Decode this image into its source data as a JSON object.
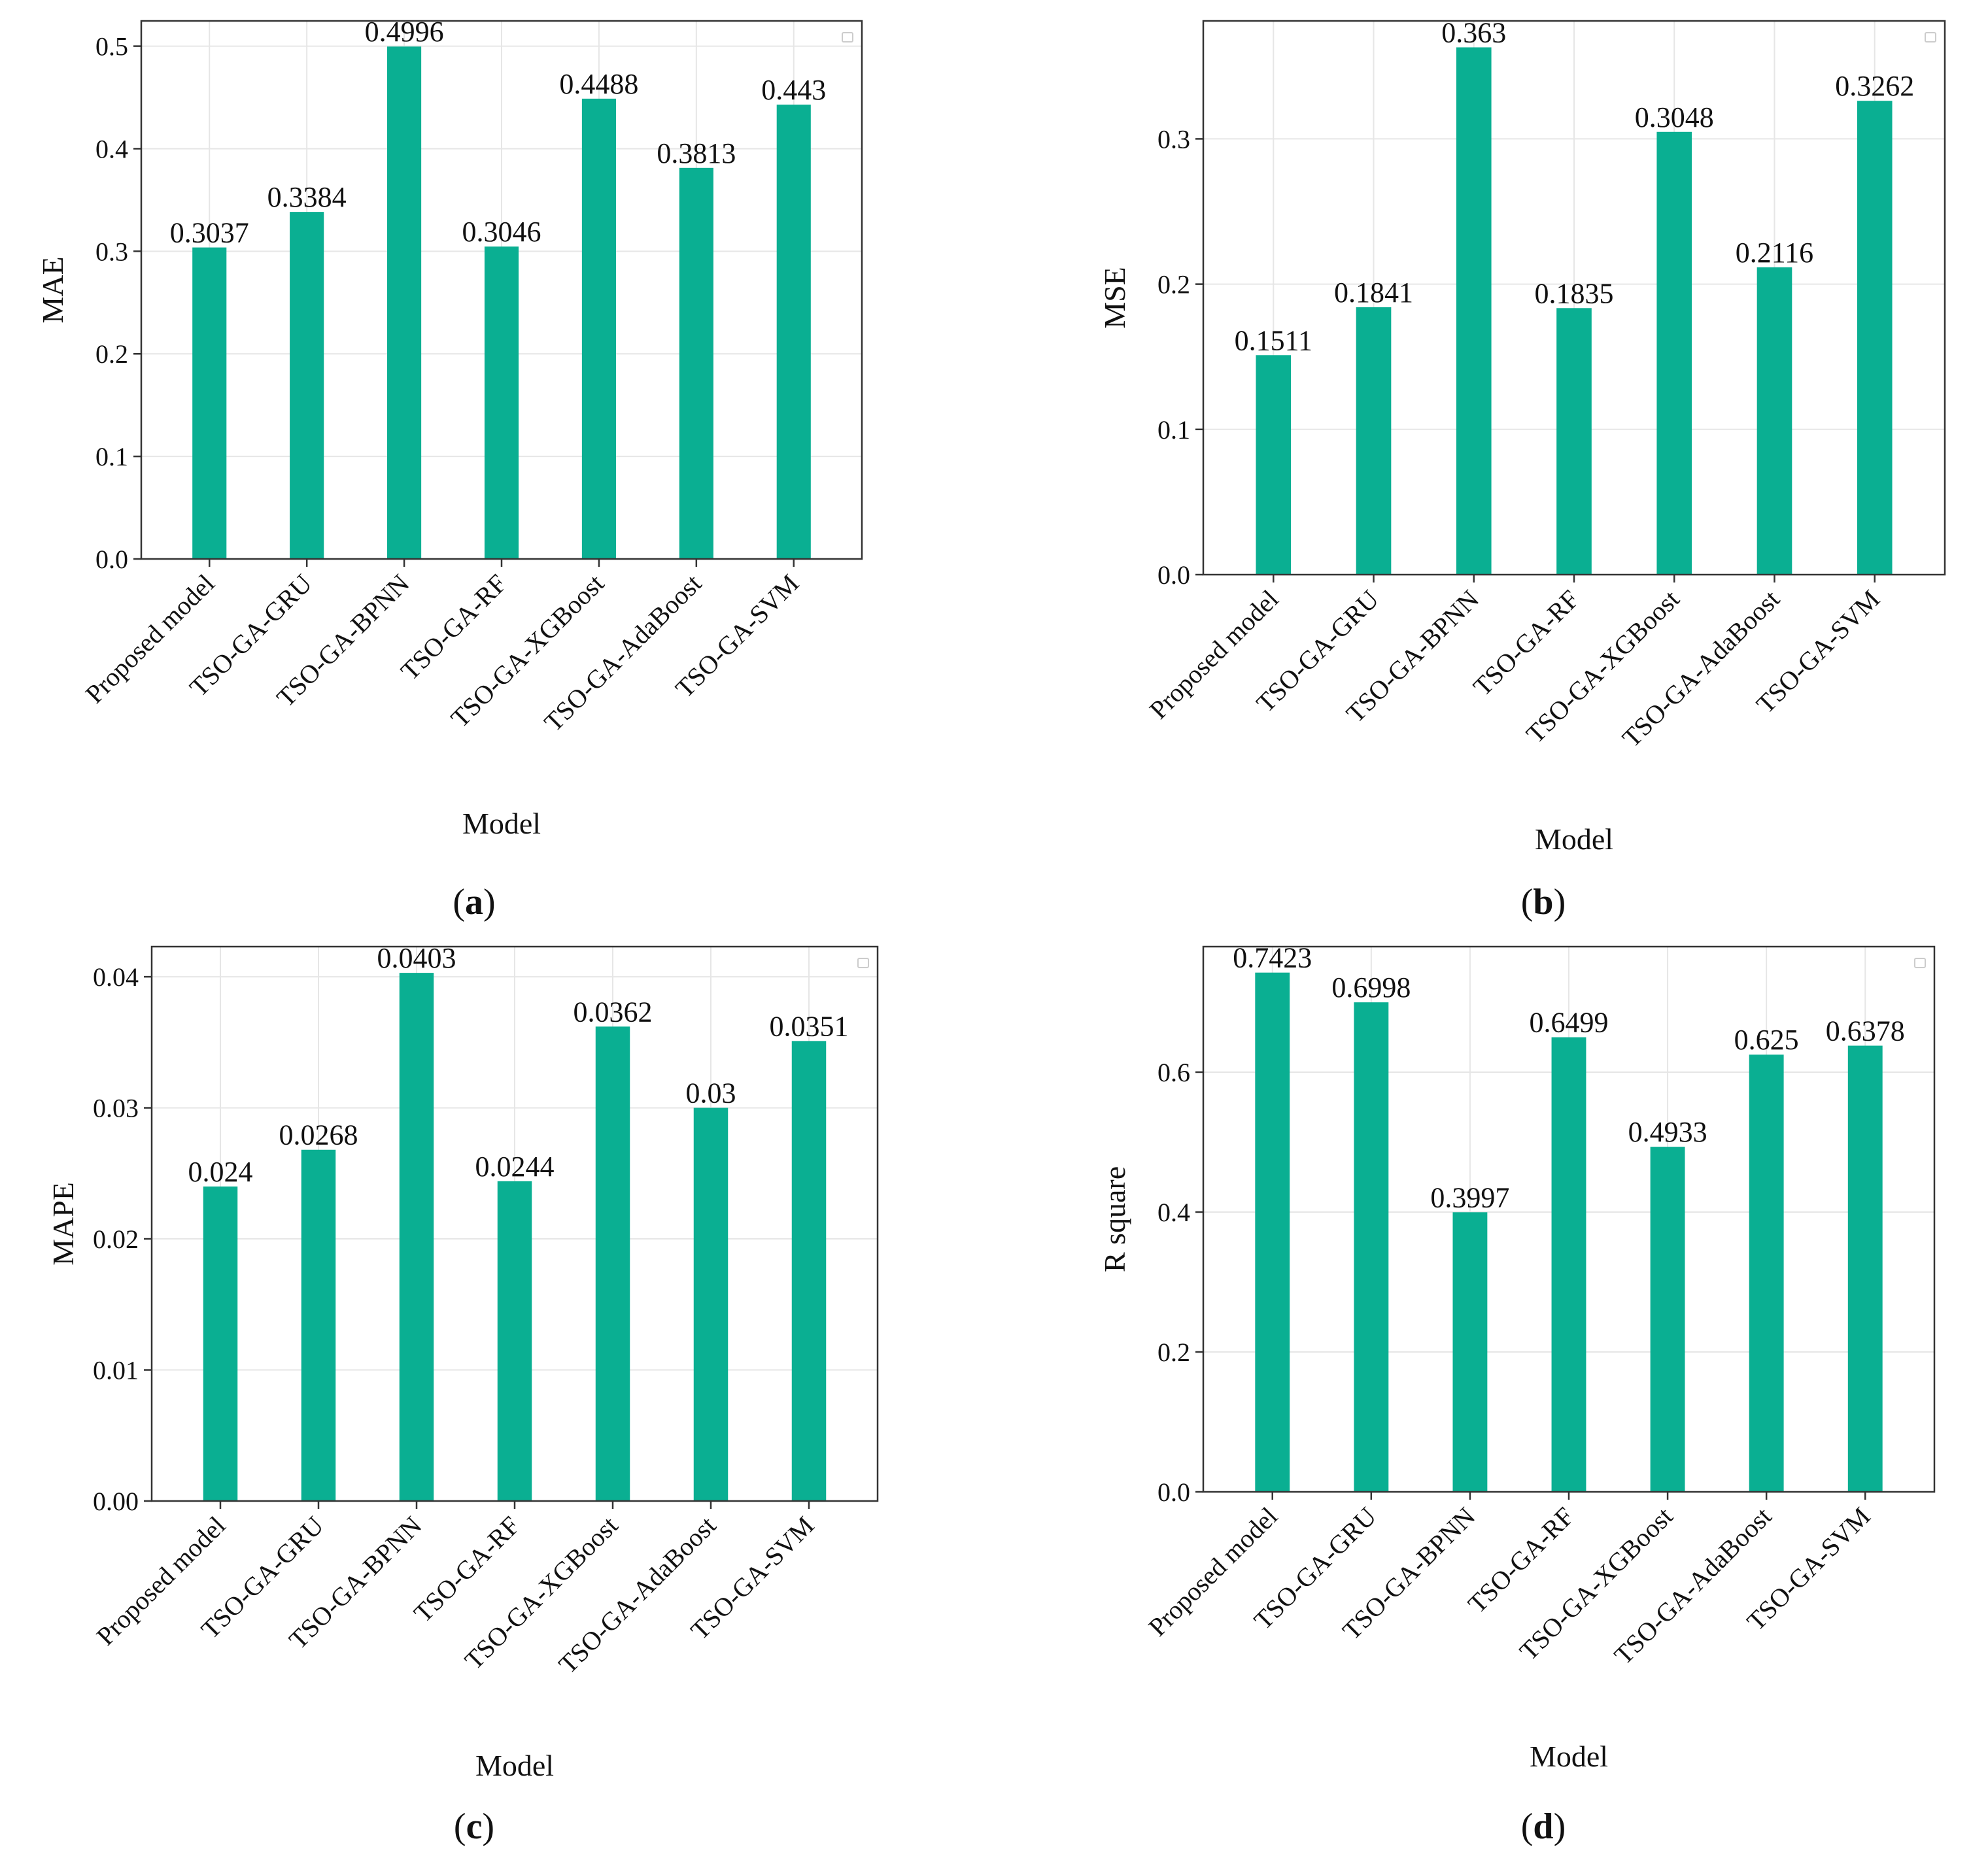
{
  "bar_color": "#0aaf92",
  "grid": true,
  "legend": "top-right (empty)",
  "chart_data": [
    {
      "type": "bar",
      "panel": "(a)",
      "panel_letter": "a",
      "xlabel": "Model",
      "ylabel": "MAE",
      "categories": [
        "Proposed model",
        "TSO-GA-GRU",
        "TSO-GA-BPNN",
        "TSO-GA-RF",
        "TSO-GA-XGBoost",
        "TSO-GA-AdaBoost",
        "TSO-GA-SVM"
      ],
      "values": [
        0.3037,
        0.3384,
        0.4996,
        0.3046,
        0.4488,
        0.3813,
        0.443
      ],
      "value_labels": [
        "0.3037",
        "0.3384",
        "0.4996",
        "0.3046",
        "0.4488",
        "0.3813",
        "0.443"
      ],
      "ylim": [
        0,
        0.5246
      ],
      "yticks": [
        0.0,
        0.1,
        0.2,
        0.3,
        0.4,
        0.5
      ],
      "ytick_labels": [
        "0.0",
        "0.1",
        "0.2",
        "0.3",
        "0.4",
        "0.5"
      ]
    },
    {
      "type": "bar",
      "panel": "(b)",
      "panel_letter": "b",
      "xlabel": "Model",
      "ylabel": "MSE",
      "categories": [
        "Proposed model",
        "TSO-GA-GRU",
        "TSO-GA-BPNN",
        "TSO-GA-RF",
        "TSO-GA-XGBoost",
        "TSO-GA-AdaBoost",
        "TSO-GA-SVM"
      ],
      "values": [
        0.1511,
        0.1841,
        0.363,
        0.1835,
        0.3048,
        0.2116,
        0.3262
      ],
      "value_labels": [
        "0.1511",
        "0.1841",
        "0.363",
        "0.1835",
        "0.3048",
        "0.2116",
        "0.3262"
      ],
      "ylim": [
        0,
        0.3812
      ],
      "yticks": [
        0.0,
        0.1,
        0.2,
        0.3
      ],
      "ytick_labels": [
        "0.0",
        "0.1",
        "0.2",
        "0.3"
      ]
    },
    {
      "type": "bar",
      "panel": "(c)",
      "panel_letter": "c",
      "xlabel": "Model",
      "ylabel": "MAPE",
      "categories": [
        "Proposed model",
        "TSO-GA-GRU",
        "TSO-GA-BPNN",
        "TSO-GA-RF",
        "TSO-GA-XGBoost",
        "TSO-GA-AdaBoost",
        "TSO-GA-SVM"
      ],
      "values": [
        0.024,
        0.0268,
        0.0403,
        0.0244,
        0.0362,
        0.03,
        0.0351
      ],
      "value_labels": [
        "0.024",
        "0.0268",
        "0.0403",
        "0.0244",
        "0.0362",
        "0.03",
        "0.0351"
      ],
      "ylim": [
        0,
        0.0423
      ],
      "yticks": [
        0.0,
        0.01,
        0.02,
        0.03,
        0.04
      ],
      "ytick_labels": [
        "0.00",
        "0.01",
        "0.02",
        "0.03",
        "0.04"
      ]
    },
    {
      "type": "bar",
      "panel": "(d)",
      "panel_letter": "d",
      "xlabel": "Model",
      "ylabel": "R square",
      "categories": [
        "Proposed model",
        "TSO-GA-GRU",
        "TSO-GA-BPNN",
        "TSO-GA-RF",
        "TSO-GA-XGBoost",
        "TSO-GA-AdaBoost",
        "TSO-GA-SVM"
      ],
      "values": [
        0.7423,
        0.6998,
        0.3997,
        0.6499,
        0.4933,
        0.625,
        0.6378
      ],
      "value_labels": [
        "0.7423",
        "0.6998",
        "0.3997",
        "0.6499",
        "0.4933",
        "0.625",
        "0.6378"
      ],
      "ylim": [
        0,
        0.7794
      ],
      "yticks": [
        0.0,
        0.2,
        0.4,
        0.6
      ],
      "ytick_labels": [
        "0.0",
        "0.2",
        "0.4",
        "0.6"
      ]
    }
  ]
}
